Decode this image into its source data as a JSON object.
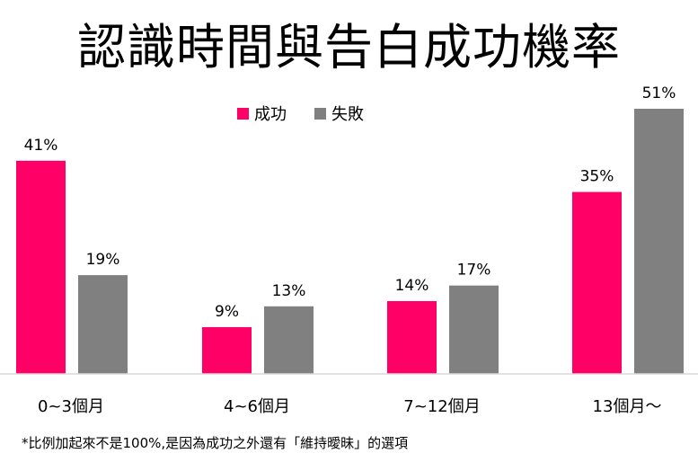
{
  "chart_data": {
    "type": "bar",
    "title": "認識時間與告白成功機率",
    "categories": [
      "0~3個月",
      "4~6個月",
      "7~12個月",
      "13個月～"
    ],
    "series": [
      {
        "name": "成功",
        "values": [
          41,
          9,
          14,
          35
        ],
        "labels": [
          "41%",
          "9%",
          "14%",
          "35%"
        ],
        "color": "#ff0066"
      },
      {
        "name": "失敗",
        "values": [
          19,
          13,
          17,
          51
        ],
        "labels": [
          "19%",
          "13%",
          "17%",
          "51%"
        ],
        "color": "#808080"
      }
    ],
    "ylim": [
      0,
      51
    ],
    "grid": false,
    "legend": "top-center",
    "footnote": "*比例加起來不是100%,是因為成功之外還有「維持曖昧」的選項"
  }
}
